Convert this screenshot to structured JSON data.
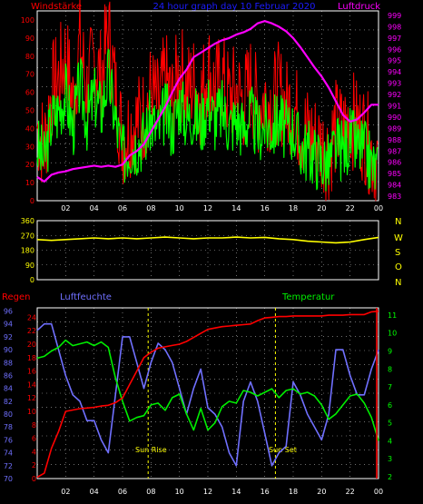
{
  "header": {
    "left_label": "Windstärke",
    "center_label": "24 hour graph day  10 Februar 2020",
    "right_label": "Luftdruck"
  },
  "wind_dir_labels": [
    "N",
    "W",
    "S",
    "O",
    "N"
  ],
  "bottom_labels": {
    "left": "Regen",
    "center_left": "Luftfeuchte",
    "right": "Temperatur",
    "sunrise": "Sun Rise",
    "sunset": "Sun Set"
  },
  "colors": {
    "wind_avg": "#00ff00",
    "wind_gust": "#ff0000",
    "pressure": "#ff00ff",
    "direction": "#ffff00",
    "humidity": "#7070ff",
    "temperature": "#00ee00",
    "rain": "#ff0000",
    "axis_left": "#ff0000",
    "axis_right_top": "#ff00ff",
    "axis_dir": "#ffff00",
    "axis_humidity": "#7070ff",
    "axis_temp": "#00ff00"
  },
  "chart_data": [
    {
      "type": "line",
      "name": "top",
      "x_ticks": [
        "02",
        "04",
        "06",
        "08",
        "10",
        "12",
        "14",
        "16",
        "18",
        "20",
        "22",
        "00"
      ],
      "y_left_ticks": [
        "0",
        "10",
        "20",
        "30",
        "40",
        "50",
        "60",
        "70",
        "80",
        "90",
        "100"
      ],
      "y_right_ticks": [
        "983",
        "984",
        "985",
        "986",
        "987",
        "988",
        "989",
        "990",
        "991",
        "992",
        "993",
        "994",
        "995",
        "996",
        "997",
        "998",
        "999"
      ],
      "ylim_left": [
        0,
        105
      ],
      "ylim_right": [
        982.6,
        999.4
      ],
      "series": [
        {
          "name": "Windstärke",
          "axis": "left",
          "x": [
            0,
            0.5,
            1,
            1.5,
            2,
            2.5,
            3,
            3.5,
            4,
            4.5,
            5,
            5.5,
            6,
            6.5,
            7,
            7.5,
            8,
            8.5,
            9,
            9.5,
            10,
            10.5,
            11,
            11.5,
            12,
            12.5,
            13,
            13.5,
            14,
            14.5,
            15,
            15.5,
            16,
            16.5,
            17,
            17.5,
            18,
            18.5,
            19,
            19.5,
            20,
            20.5,
            21,
            21.5,
            22,
            22.5,
            23,
            23.5,
            24
          ],
          "values": [
            30,
            22,
            45,
            50,
            60,
            40,
            65,
            45,
            58,
            50,
            70,
            45,
            25,
            30,
            32,
            35,
            45,
            38,
            50,
            40,
            55,
            45,
            48,
            42,
            55,
            45,
            50,
            42,
            45,
            40,
            48,
            38,
            42,
            40,
            45,
            38,
            40,
            30,
            28,
            25,
            22,
            20,
            30,
            28,
            35,
            30,
            28,
            20,
            15
          ]
        },
        {
          "name": "Luftdruck",
          "axis": "right",
          "x": [
            0,
            0.5,
            1,
            1.5,
            2,
            2.5,
            3,
            3.5,
            4,
            4.5,
            5,
            5.5,
            6,
            6.5,
            7,
            7.5,
            8,
            8.5,
            9,
            9.5,
            10,
            10.5,
            11,
            11.5,
            12,
            12.5,
            13,
            13.5,
            14,
            14.5,
            15,
            15.5,
            16,
            16.5,
            17,
            17.5,
            18,
            18.5,
            19,
            19.5,
            20,
            20.5,
            21,
            21.5,
            22,
            22.5,
            23,
            23.5,
            24
          ],
          "values": [
            984.7,
            984.3,
            984.9,
            985.1,
            985.2,
            985.4,
            985.5,
            985.6,
            985.7,
            985.6,
            985.7,
            985.6,
            985.8,
            986.6,
            987,
            987.6,
            988.7,
            989.8,
            990.9,
            992.2,
            993.4,
            994.2,
            995.3,
            995.7,
            996.1,
            996.5,
            996.8,
            997,
            997.3,
            997.5,
            997.8,
            998.3,
            998.5,
            998.3,
            998,
            997.6,
            997,
            996.2,
            995.3,
            994.4,
            993.6,
            992.6,
            991.4,
            990.2,
            989.6,
            989.8,
            990.4,
            991.1,
            991.1
          ]
        }
      ]
    },
    {
      "type": "line",
      "name": "middle",
      "x_ticks": [
        "02",
        "04",
        "06",
        "08",
        "10",
        "12",
        "14",
        "16",
        "18",
        "20",
        "22",
        "00"
      ],
      "y_left_ticks": [
        "0",
        "90",
        "180",
        "270",
        "360"
      ],
      "ylim": [
        0,
        360
      ],
      "series": [
        {
          "name": "Windrichtung",
          "x": [
            0,
            1,
            2,
            3,
            4,
            5,
            6,
            7,
            8,
            9,
            10,
            11,
            12,
            13,
            14,
            15,
            16,
            17,
            18,
            19,
            20,
            21,
            22,
            23,
            24
          ],
          "values": [
            245,
            240,
            245,
            250,
            255,
            250,
            255,
            250,
            255,
            260,
            255,
            250,
            255,
            255,
            260,
            255,
            258,
            250,
            245,
            235,
            230,
            225,
            230,
            245,
            258
          ]
        }
      ]
    },
    {
      "type": "line",
      "name": "bottom",
      "x_ticks": [
        "02",
        "04",
        "06",
        "08",
        "10",
        "12",
        "14",
        "16",
        "18",
        "20",
        "22",
        "00"
      ],
      "y_humidity_ticks": [
        "70",
        "72",
        "74",
        "76",
        "78",
        "80",
        "82",
        "84",
        "86",
        "88",
        "90",
        "92",
        "94",
        "96"
      ],
      "y_rain_ticks": [
        "0",
        "2",
        "4",
        "6",
        "8",
        "10",
        "12",
        "14",
        "16",
        "18",
        "20",
        "22",
        "24"
      ],
      "y_temp_ticks": [
        "2",
        "3",
        "4",
        "5",
        "6",
        "7",
        "8",
        "9",
        "10",
        "11"
      ],
      "ylim_humidity": [
        70,
        96.5
      ],
      "ylim_rain": [
        0,
        25.4
      ],
      "ylim_temp": [
        1.9,
        11.4
      ],
      "series": [
        {
          "name": "Luftfeuchte",
          "axis": "humidity",
          "x": [
            0,
            0.5,
            1,
            1.5,
            2,
            2.5,
            3,
            3.5,
            4,
            4.5,
            5,
            5.5,
            6,
            6.5,
            7,
            7.5,
            8,
            8.5,
            9,
            9.5,
            10,
            10.5,
            11,
            11.5,
            12,
            12.5,
            13,
            13.5,
            14,
            14.5,
            15,
            15.5,
            16,
            16.5,
            17,
            17.5,
            18,
            18.5,
            19,
            19.5,
            20,
            20.5,
            21,
            21.5,
            22,
            22.5,
            23,
            23.5,
            24
          ],
          "values": [
            93,
            94,
            94,
            90,
            86,
            83,
            82,
            79,
            79,
            76,
            74,
            83,
            92,
            92,
            88,
            84,
            88,
            91,
            90,
            88,
            84,
            80,
            84,
            87,
            81,
            80,
            78,
            74,
            72,
            82,
            85,
            82,
            77,
            72,
            74,
            75,
            85,
            83,
            80,
            78,
            76,
            80,
            90,
            90,
            86,
            83,
            83,
            87,
            90
          ]
        },
        {
          "name": "Temperatur",
          "axis": "temp",
          "x": [
            0,
            0.5,
            1,
            1.5,
            2,
            2.5,
            3,
            3.5,
            4,
            4.5,
            5,
            5.5,
            6,
            6.5,
            7,
            7.5,
            8,
            8.5,
            9,
            9.5,
            10,
            10.5,
            11,
            11.5,
            12,
            12.5,
            13,
            13.5,
            14,
            14.5,
            15,
            15.5,
            16,
            16.5,
            17,
            17.5,
            18,
            18.5,
            19,
            19.5,
            20,
            20.5,
            21,
            21.5,
            22,
            22.5,
            23,
            23.5,
            24
          ],
          "values": [
            8.6,
            8.7,
            9.0,
            9.2,
            9.6,
            9.3,
            9.4,
            9.5,
            9.3,
            9.5,
            9.2,
            7.5,
            6.2,
            5.1,
            5.3,
            5.4,
            6.0,
            6.1,
            5.7,
            6.4,
            6.6,
            5.5,
            4.6,
            5.8,
            4.6,
            5.0,
            5.9,
            6.2,
            6.1,
            6.8,
            6.7,
            6.5,
            6.7,
            6.9,
            6.4,
            6.8,
            6.9,
            6.6,
            6.7,
            6.5,
            6.0,
            5.2,
            5.5,
            6.0,
            6.5,
            6.6,
            6.1,
            5.3,
            4.0
          ]
        },
        {
          "name": "Regen",
          "axis": "rain",
          "x": [
            0,
            0.5,
            1,
            1.5,
            2,
            2.5,
            3,
            3.5,
            4,
            4.5,
            5,
            5.5,
            6,
            6.5,
            7,
            7.5,
            8,
            8.5,
            9,
            9.5,
            10,
            10.5,
            11,
            11.5,
            12,
            12.5,
            13,
            13.5,
            14,
            14.5,
            15,
            15.5,
            16,
            16.5,
            17,
            17.5,
            18,
            18.5,
            19,
            19.5,
            20,
            20.5,
            21,
            21.5,
            22,
            22.5,
            23,
            23.5,
            24
          ],
          "values": [
            0.2,
            0.8,
            4.5,
            7.0,
            10.0,
            10.2,
            10.4,
            10.5,
            10.6,
            10.8,
            10.9,
            11.3,
            12.0,
            14.0,
            16.0,
            18.0,
            18.8,
            19.4,
            19.6,
            19.8,
            20.0,
            20.4,
            21.0,
            21.6,
            22.2,
            22.4,
            22.6,
            22.7,
            22.8,
            22.9,
            23.0,
            23.5,
            23.9,
            24.0,
            24.1,
            24.1,
            24.2,
            24.2,
            24.2,
            24.2,
            24.2,
            24.3,
            24.3,
            24.3,
            24.4,
            24.4,
            24.4,
            24.8,
            24.9
          ]
        }
      ]
    }
  ]
}
